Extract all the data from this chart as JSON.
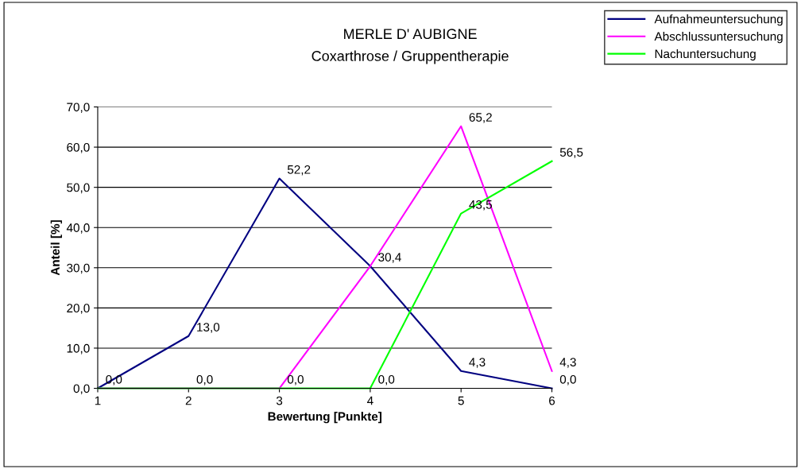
{
  "chart_data": {
    "type": "line",
    "title": "MERLE D' AUBIGNE",
    "subtitle": "Coxarthrose / Gruppentherapie",
    "xlabel": "Bewertung [Punkte]",
    "ylabel": "Anteil [%]",
    "x": [
      1,
      2,
      3,
      4,
      5,
      6
    ],
    "series": [
      {
        "name": "Aufnahmeuntersuchung",
        "color": "#000080",
        "values": [
          0.0,
          13.0,
          52.2,
          30.4,
          4.3,
          0.0
        ],
        "value_labels": [
          "0,0",
          "13,0",
          "52,2",
          "30,4",
          "4,3",
          "0,0"
        ]
      },
      {
        "name": "Abschlussuntersuchung",
        "color": "#ff00ff",
        "values": [
          0.0,
          0.0,
          0.0,
          30.4,
          65.2,
          4.3
        ],
        "value_labels": [
          null,
          "0,0",
          "0,0",
          null,
          "65,2",
          "4,3"
        ]
      },
      {
        "name": "Nachuntersuchung",
        "color": "#00ff00",
        "values": [
          0.0,
          0.0,
          0.0,
          0.0,
          43.5,
          56.5
        ],
        "value_labels": [
          null,
          null,
          null,
          "0,0",
          "43,5",
          "56,5"
        ]
      }
    ],
    "xlim": [
      1,
      6
    ],
    "xticks": [
      1,
      2,
      3,
      4,
      5,
      6
    ],
    "ylim": [
      0,
      70
    ],
    "yticks": [
      {
        "value": 0,
        "label": "0,0"
      },
      {
        "value": 10,
        "label": "10,0"
      },
      {
        "value": 20,
        "label": "20,0"
      },
      {
        "value": 30,
        "label": "30,0"
      },
      {
        "value": 40,
        "label": "40,0"
      },
      {
        "value": 50,
        "label": "50,0"
      },
      {
        "value": 60,
        "label": "60,0"
      },
      {
        "value": 70,
        "label": "70,0"
      }
    ],
    "grid": "y",
    "legend": "top right",
    "line_style": "solid"
  }
}
